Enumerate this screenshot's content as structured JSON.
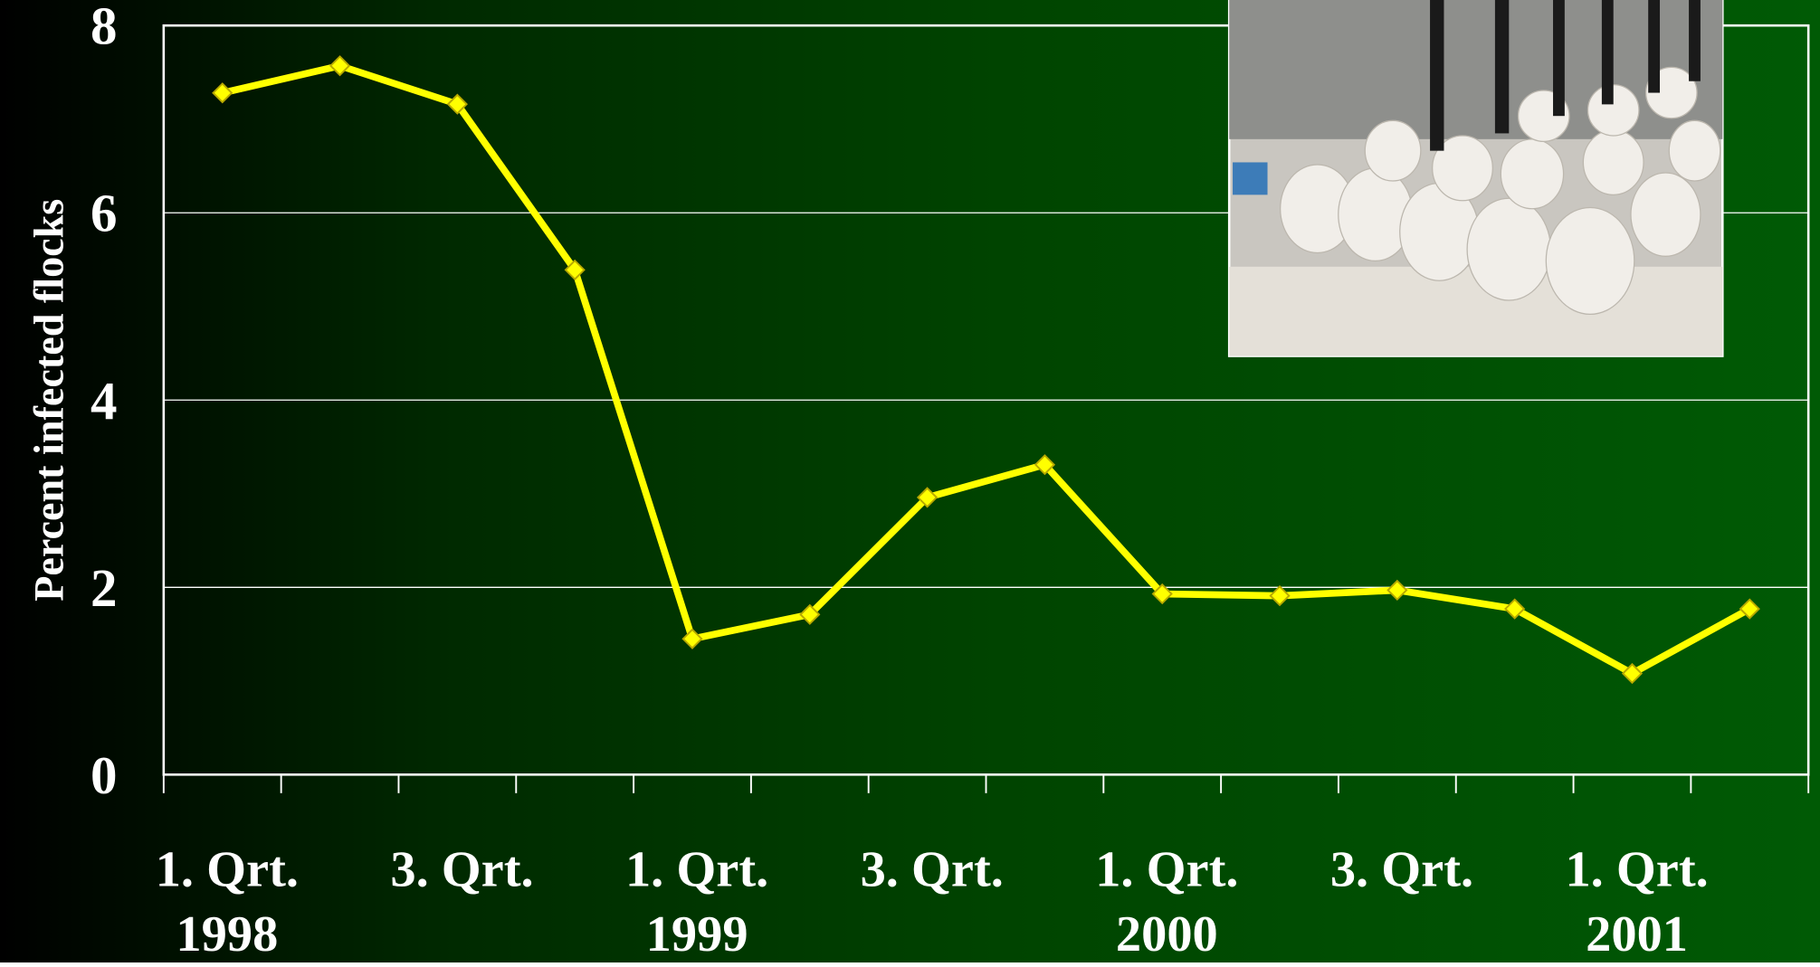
{
  "chart_data": {
    "type": "line",
    "y_label": "Percent infected flocks",
    "categories": [
      "1. Qrt.\n1998",
      null,
      "3. Qrt.",
      null,
      "1. Qrt.\n1999",
      null,
      "3. Qrt.",
      null,
      "1. Qrt.\n2000",
      null,
      "3. Qrt.",
      null,
      "1. Qrt.\n2001",
      null
    ],
    "series": [
      {
        "color": "#ffff00",
        "values": [
          7.28,
          7.57,
          7.16,
          5.39,
          1.45,
          1.71,
          2.96,
          3.31,
          1.93,
          1.91,
          1.97,
          1.77,
          1.08,
          1.77
        ]
      }
    ],
    "ylim": [
      0,
      8
    ],
    "yticks": [
      0,
      2,
      4,
      6,
      8
    ],
    "grid": true
  }
}
